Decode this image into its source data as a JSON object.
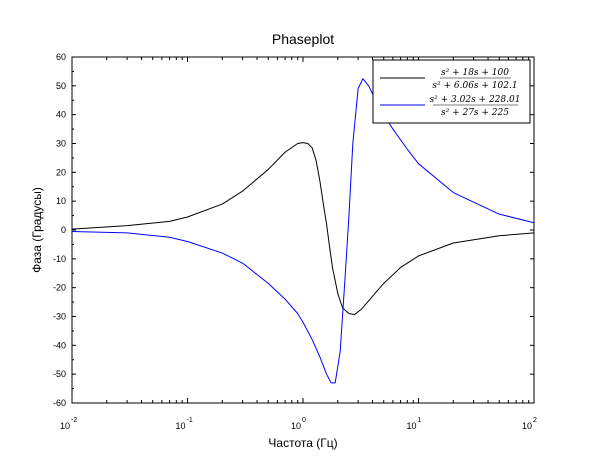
{
  "chart_data": {
    "type": "line",
    "title": "Phaseplot",
    "xlabel": "Частота (Гц)",
    "ylabel": "Фаза (Градусы)",
    "xscale": "log",
    "xlim": [
      0.01,
      100
    ],
    "ylim": [
      -60,
      60
    ],
    "x_tick_labels": [
      {
        "base": "10",
        "exp": "-2"
      },
      {
        "base": "10",
        "exp": "-1"
      },
      {
        "base": "10",
        "exp": "0"
      },
      {
        "base": "10",
        "exp": "1"
      },
      {
        "base": "10",
        "exp": "2"
      }
    ],
    "y_ticks": [
      60,
      50,
      40,
      30,
      20,
      10,
      0,
      -10,
      -20,
      -30,
      -40,
      -50,
      -60
    ],
    "grid": false,
    "legend_position": "top-right",
    "series": [
      {
        "name": "s^2 + 18s + 100 / s^2 + 6.06s + 102.1",
        "legend_num": "s² + 18s + 100",
        "legend_den": "s² + 6.06s + 102.1",
        "color": "#000000",
        "x": [
          0.01,
          0.03,
          0.07,
          0.1,
          0.2,
          0.3,
          0.5,
          0.7,
          0.9,
          1.0,
          1.1,
          1.2,
          1.3,
          1.4,
          1.5,
          1.6,
          1.7,
          1.8,
          2.0,
          2.2,
          2.5,
          2.8,
          3.2,
          4.0,
          5.0,
          7.0,
          10.0,
          20.0,
          50.0,
          100.0
        ],
        "y": [
          0.3,
          1.5,
          3.0,
          4.5,
          9.0,
          13.5,
          21.0,
          27.0,
          30.0,
          30.3,
          30.0,
          28.5,
          24.0,
          17.0,
          9.0,
          2.0,
          -6.0,
          -13.0,
          -22.0,
          -27.0,
          -29.0,
          -29.3,
          -27.5,
          -23.0,
          -18.5,
          -13.0,
          -9.0,
          -4.5,
          -2.0,
          -1.0
        ]
      },
      {
        "name": "s^2 + 3.02s + 228.01 / s^2 + 27s + 225",
        "legend_num": "s² + 3.02s + 228.01",
        "legend_den": "s² + 27s + 225",
        "color": "#0000ff",
        "x": [
          0.01,
          0.03,
          0.07,
          0.1,
          0.2,
          0.3,
          0.5,
          0.7,
          0.9,
          1.0,
          1.2,
          1.4,
          1.6,
          1.75,
          1.9,
          2.1,
          2.3,
          2.5,
          2.7,
          3.0,
          3.3,
          3.7,
          4.2,
          5.0,
          6.0,
          8.0,
          10.0,
          20.0,
          50.0,
          100.0
        ],
        "y": [
          -0.5,
          -1.0,
          -2.5,
          -4.0,
          -8.0,
          -11.5,
          -18.5,
          -24.0,
          -29.0,
          -32.0,
          -38.0,
          -44.0,
          -50.0,
          -53.0,
          -53.0,
          -42.0,
          -18.0,
          5.0,
          30.0,
          49.0,
          52.5,
          50.0,
          45.5,
          40.0,
          35.0,
          28.0,
          23.0,
          13.0,
          5.5,
          2.5
        ]
      }
    ]
  }
}
